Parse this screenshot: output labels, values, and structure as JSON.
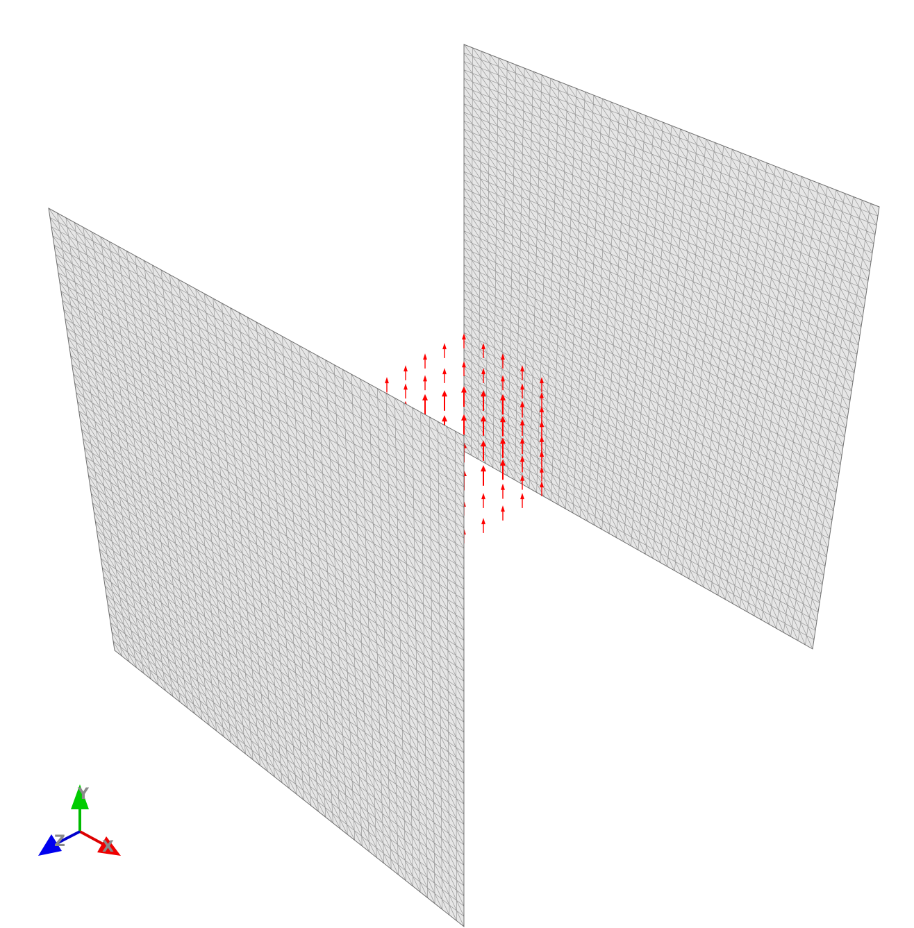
{
  "scene": {
    "background": "#ffffff",
    "plane_fill": "#e6e6e6",
    "mesh_line_color": "#555555",
    "vector_color": "#ff0000",
    "vector_direction": "+Y"
  },
  "axes_triad": {
    "x": {
      "label": "X",
      "color": "#ff0000"
    },
    "y": {
      "label": "Y",
      "color": "#00cc00"
    },
    "z": {
      "label": "Z",
      "color": "#0000ff"
    }
  }
}
